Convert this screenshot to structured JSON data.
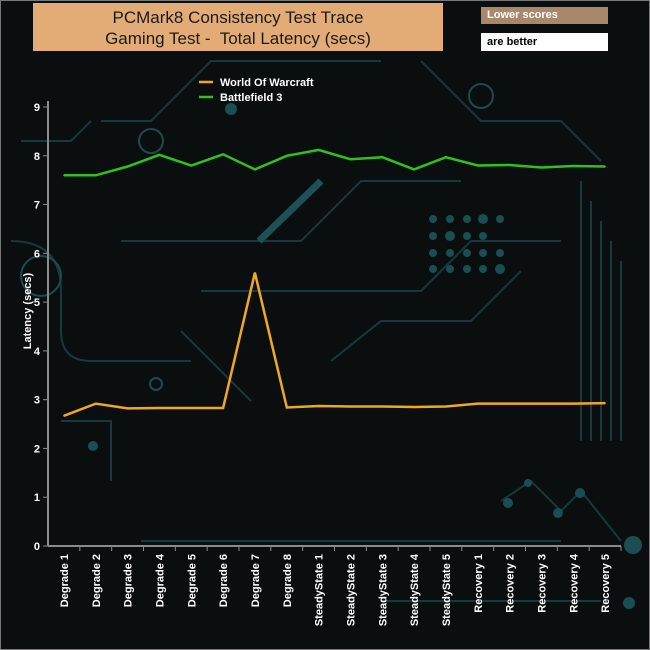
{
  "chart_data": {
    "type": "line",
    "title": [
      "PCMark8 Consistency Test Trace",
      "Gaming Test -  Total Latency (secs)"
    ],
    "ylabel": "Latency (secs)",
    "xlabel": "",
    "ylim": [
      0,
      9
    ],
    "yticks": [
      "0",
      "1",
      "2",
      "3",
      "4",
      "5",
      "6",
      "7",
      "8",
      "9"
    ],
    "categories": [
      "Degrade 1",
      "Degrade 2",
      "Degrade 3",
      "Degrade 4",
      "Degrade 5",
      "Degrade 6",
      "Degrade 7",
      "Degrade 8",
      "SteadyState 1",
      "SteadyState 2",
      "SteadyState 3",
      "SteadyState 4",
      "SteadyState 5",
      "Recovery 1",
      "Recovery 2",
      "Recovery 3",
      "Recovery 4",
      "Recovery 5"
    ],
    "series": [
      {
        "name": "World Of Warcraft",
        "color": "#f2a81e",
        "values": [
          2.67,
          2.92,
          2.82,
          2.83,
          2.83,
          2.83,
          5.6,
          2.84,
          2.87,
          2.86,
          2.86,
          2.85,
          2.86,
          2.92,
          2.92,
          2.92,
          2.92,
          2.93
        ]
      },
      {
        "name": "Battlefield 3",
        "color": "#2ec21a",
        "values": [
          7.6,
          7.6,
          7.78,
          8.02,
          7.8,
          8.03,
          7.72,
          8.0,
          8.12,
          7.93,
          7.97,
          7.72,
          7.97,
          7.8,
          7.81,
          7.76,
          7.79,
          7.78
        ]
      }
    ],
    "legend_position": "top-center",
    "grid": false
  },
  "notes": {
    "lower": "Lower scores",
    "better": "are better"
  }
}
